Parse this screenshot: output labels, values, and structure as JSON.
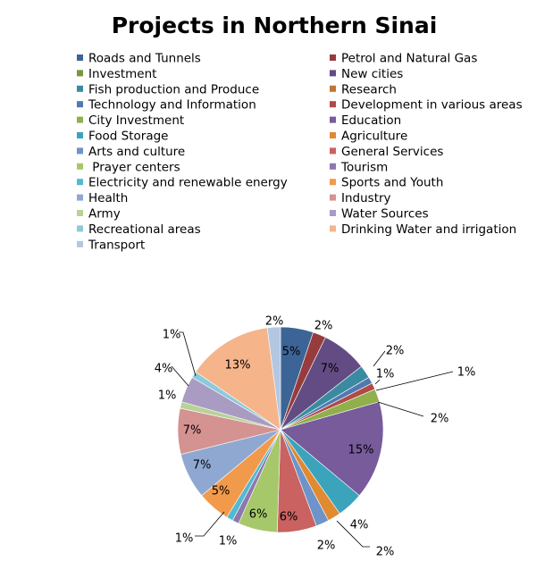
{
  "chart_data": {
    "type": "pie",
    "title": "Projects in Northern Sinai",
    "legend_position": "top",
    "categories": [
      "Roads and Tunnels",
      "Petrol and Natural Gas",
      "Investment",
      "New cities",
      "Fish production and Produce",
      "Research",
      "Technology and Information",
      "Development in various areas",
      "City Investment",
      "Education",
      "Food Storage",
      "Agriculture",
      "Arts and culture",
      "General Services",
      " Prayer centers",
      "Tourism",
      "Electricity and renewable energy",
      "Sports and Youth",
      "Health",
      "Industry",
      "Army",
      "Water Sources",
      "Recreational areas",
      "Drinking Water and irrigation",
      "Transport"
    ],
    "values": [
      5,
      2,
      0,
      7,
      2,
      0,
      1,
      1,
      2,
      15,
      4,
      2,
      2,
      6,
      6,
      1,
      1,
      5,
      7,
      7,
      1,
      4,
      1,
      13,
      2
    ],
    "labels": [
      "5%",
      "2%",
      "",
      "7%",
      "2%",
      "",
      "1%",
      "1%",
      "2%",
      "15%",
      "4%",
      "2%",
      "2%",
      "6%",
      "6%",
      "1%",
      "1%",
      "5%",
      "7%",
      "7%",
      "1%",
      "4%",
      "1%",
      "13%",
      "2%"
    ],
    "colors": [
      "#3c6496",
      "#963c3c",
      "#779640",
      "#634c83",
      "#3a8ba0",
      "#c07535",
      "#4f79b0",
      "#b04a47",
      "#8fb04b",
      "#775b9a",
      "#3ba3bc",
      "#e08a32",
      "#6e93c8",
      "#c96260",
      "#a6c86a",
      "#8d78ad",
      "#52b9d1",
      "#f29a4b",
      "#8ea8d2",
      "#d49391",
      "#b8d297",
      "#a99bc1",
      "#8ccadb",
      "#f5b48a",
      "#b3c7e2"
    ]
  }
}
